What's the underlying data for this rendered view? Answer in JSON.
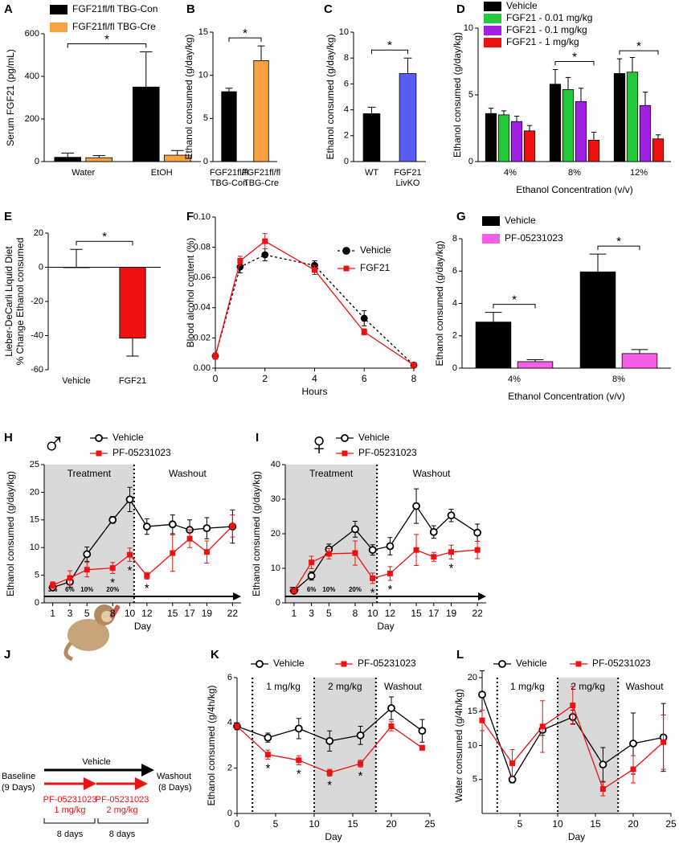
{
  "chart_data": [
    {
      "panel": "A",
      "type": "bar",
      "ylabel": "Serum FGF21 (pg/mL)",
      "categories": [
        "Water",
        "EtOH"
      ],
      "series": [
        {
          "name": "FGF21fl/fl TBG-Con",
          "color": "#000000",
          "values": [
            20,
            350
          ],
          "errors": [
            20,
            165
          ]
        },
        {
          "name": "FGF21fl/fl TBG-Cre",
          "color": "#f9a040",
          "values": [
            18,
            30
          ],
          "errors": [
            10,
            22
          ]
        }
      ],
      "ylim": [
        0,
        600
      ],
      "yticks": [
        0,
        200,
        400,
        600
      ],
      "significance": [
        {
          "label": "*",
          "a": [
            0,
            0
          ],
          "b": [
            0,
            1
          ]
        }
      ]
    },
    {
      "panel": "B",
      "type": "bar",
      "ylabel": "Ethanol consumed (g/day/kg)",
      "categories": [
        [
          "FGF21fl/fl",
          "TBG-Con"
        ],
        [
          "FGF21fl/fl",
          "TBG-Cre"
        ]
      ],
      "values": [
        8.1,
        11.7
      ],
      "errors": [
        0.4,
        1.7
      ],
      "colors": [
        "#000000",
        "#f9a040"
      ],
      "ylim": [
        0,
        15
      ],
      "yticks": [
        0,
        5,
        10,
        15
      ],
      "significance": [
        {
          "label": "*",
          "a": [
            0,
            0
          ],
          "b": [
            0,
            1
          ]
        }
      ]
    },
    {
      "panel": "C",
      "type": "bar",
      "ylabel": "Ethanol consumed (g/day/kg)",
      "categories": [
        "WT",
        [
          "FGF21",
          "LivKO"
        ]
      ],
      "values": [
        3.7,
        6.8
      ],
      "errors": [
        0.5,
        1.2
      ],
      "colors": [
        "#000000",
        "#5b5ef4"
      ],
      "ylim": [
        0,
        10
      ],
      "yticks": [
        0,
        2,
        4,
        6,
        8,
        10
      ],
      "significance": [
        {
          "label": "*",
          "a": [
            0,
            0
          ],
          "b": [
            0,
            1
          ]
        }
      ]
    },
    {
      "panel": "D",
      "type": "bar",
      "ylabel": "Ethanol consumed (g/day/kg)",
      "xlabel": "Ethanol Concentration (v/v)",
      "categories": [
        "4%",
        "8%",
        "12%"
      ],
      "series": [
        {
          "name": "Vehicle",
          "color": "#000000",
          "values": [
            3.6,
            5.8,
            6.6
          ],
          "errors": [
            0.4,
            1.1,
            1.1
          ]
        },
        {
          "name": "FGF21 - 0.01 mg/kg",
          "color": "#22c93a",
          "values": [
            3.5,
            5.4,
            6.7
          ],
          "errors": [
            0.3,
            0.9,
            1.1
          ]
        },
        {
          "name": "FGF21 - 0.1 mg/kg",
          "color": "#a21fe8",
          "values": [
            3.0,
            4.5,
            4.2
          ],
          "errors": [
            0.4,
            1.0,
            1.0
          ]
        },
        {
          "name": "FGF21 - 1 mg/kg",
          "color": "#ee1111",
          "values": [
            2.3,
            1.6,
            1.7
          ],
          "errors": [
            0.4,
            0.6,
            0.3
          ]
        }
      ],
      "ylim": [
        0,
        10
      ],
      "yticks": [
        0,
        5,
        10
      ],
      "significance": [
        {
          "label": "*",
          "a": [
            0,
            1
          ],
          "b": [
            3,
            1
          ]
        },
        {
          "label": "*",
          "a": [
            0,
            2
          ],
          "b": [
            3,
            2
          ]
        }
      ]
    },
    {
      "panel": "E",
      "type": "bar",
      "ylabel": [
        "Lieber-DeCarli Liquid Diet",
        "% Change Ethanol consumed"
      ],
      "categories": [
        "Vehicle",
        "FGF21"
      ],
      "values": [
        0,
        -41.5
      ],
      "errors": [
        10.5,
        10.5
      ],
      "colors": [
        "#ffffff",
        "#ee1111"
      ],
      "ylim": [
        -60,
        20
      ],
      "yticks": [
        -60,
        -40,
        -20,
        0,
        20
      ],
      "significance": [
        {
          "label": "*",
          "a": [
            0,
            0
          ],
          "b": [
            0,
            1
          ]
        }
      ]
    },
    {
      "panel": "F",
      "type": "line",
      "ylabel": "Blood alcohol content (%)",
      "xlabel": "Hours",
      "x": [
        0,
        1,
        2,
        4,
        6,
        8
      ],
      "xlim": [
        0,
        8
      ],
      "xticks": [
        0,
        2,
        4,
        6,
        8
      ],
      "series": [
        {
          "name": "Vehicle",
          "color": "#000000",
          "marker": "circle",
          "line_style": "dashed",
          "values": [
            0.008,
            0.067,
            0.075,
            0.068,
            0.033,
            0.002
          ],
          "errors": [
            0.002,
            0.004,
            0.004,
            0.003,
            0.005,
            0.001
          ]
        },
        {
          "name": "FGF21",
          "color": "#ee1111",
          "marker": "square",
          "line_style": "solid",
          "values": [
            0.008,
            0.071,
            0.084,
            0.065,
            0.024,
            0.002
          ],
          "errors": [
            0.002,
            0.003,
            0.005,
            0.003,
            0.002,
            0.001
          ]
        }
      ],
      "ylim": [
        0,
        0.1
      ],
      "yticks": [
        {
          "value": 0,
          "label": "0.00"
        },
        {
          "value": 0.02,
          "label": "0.02"
        },
        {
          "value": 0.04,
          "label": "0.04"
        },
        {
          "value": 0.06,
          "label": "0.06"
        },
        {
          "value": 0.08,
          "label": "0.08"
        },
        {
          "value": 0.1,
          "label": "0.10"
        }
      ]
    },
    {
      "panel": "G",
      "type": "bar",
      "ylabel": "Ethanol consumed (g/day/kg)",
      "xlabel": "Ethanol Concentration (v/v)",
      "categories": [
        "4%",
        "8%"
      ],
      "series": [
        {
          "name": "Vehicle",
          "color": "#000000",
          "values": [
            2.85,
            5.95
          ],
          "errors": [
            0.6,
            1.1
          ]
        },
        {
          "name": "PF-05231023",
          "color": "#f75ee8",
          "values": [
            0.4,
            0.9
          ],
          "errors": [
            0.12,
            0.25
          ]
        }
      ],
      "ylim": [
        0,
        8
      ],
      "yticks": [
        0,
        2,
        4,
        6,
        8
      ],
      "significance": [
        {
          "label": "*",
          "a": [
            0,
            0
          ],
          "b": [
            1,
            0
          ]
        },
        {
          "label": "*",
          "a": [
            0,
            1
          ],
          "b": [
            1,
            1
          ]
        }
      ]
    },
    {
      "panel": "H",
      "type": "line",
      "symbol": "♂",
      "ylabel": "Ethanol consumed (g/day/kg)",
      "xlabel": "Day",
      "x": [
        1,
        3,
        5,
        8,
        10,
        12,
        15,
        17,
        19,
        22
      ],
      "xlim": [
        0,
        23
      ],
      "xticks": [
        1,
        3,
        5,
        8,
        10,
        12,
        15,
        17,
        19,
        22
      ],
      "series": [
        {
          "name": "Vehicle",
          "color": "#000000",
          "marker": "open-circle",
          "line_style": "solid",
          "values": [
            2.8,
            3.8,
            8.8,
            15,
            18.7,
            13.8,
            14.2,
            13.2,
            13.5,
            13.8
          ],
          "errors": [
            0.3,
            1,
            1.3,
            0.6,
            2.2,
            1.4,
            1.7,
            1.8,
            1.9,
            3
          ]
        },
        {
          "name": "PF-05231023",
          "color": "#ee1111",
          "marker": "square",
          "line_style": "solid",
          "values": [
            3.2,
            4.5,
            6,
            6.3,
            8.7,
            4.9,
            9,
            11.6,
            9.2,
            13.9
          ],
          "errors": [
            0.6,
            1.3,
            1.3,
            1,
            1.2,
            0.6,
            3.3,
            1.6,
            2,
            2
          ]
        }
      ],
      "ylim": [
        0,
        25
      ],
      "yticks": [
        0,
        5,
        10,
        15,
        20,
        25
      ],
      "regions": [
        {
          "label": "Treatment",
          "x": [
            0,
            10.5
          ],
          "shaded": true
        },
        {
          "label": "Washout",
          "x": [
            10.5,
            23
          ],
          "shaded": false
        }
      ],
      "vlines": [
        10.5
      ],
      "arrow": true,
      "stage_labels": [
        {
          "x": 1,
          "label": "3%"
        },
        {
          "x": 3,
          "label": "6%"
        },
        {
          "x": 5,
          "label": "10%"
        },
        {
          "x": 8,
          "label": "20%"
        }
      ],
      "significance": [
        {
          "label": "*",
          "at": [
            1,
            3
          ]
        },
        {
          "label": "*",
          "at": [
            1,
            4
          ]
        },
        {
          "label": "*",
          "at": [
            1,
            5
          ]
        }
      ]
    },
    {
      "panel": "I",
      "type": "line",
      "symbol": "♀",
      "ylabel": "Ethanol consumed (g/day/kg)",
      "xlabel": "Day",
      "x": [
        1,
        3,
        5,
        8,
        10,
        12,
        15,
        17,
        19,
        22
      ],
      "xlim": [
        0,
        23
      ],
      "xticks": [
        1,
        3,
        5,
        8,
        10,
        12,
        15,
        17,
        19,
        22
      ],
      "series": [
        {
          "name": "Vehicle",
          "color": "#000000",
          "marker": "open-circle",
          "line_style": "solid",
          "values": [
            3.5,
            7.8,
            15.5,
            21.3,
            15.3,
            16.4,
            28,
            20.5,
            25.3,
            20.3
          ],
          "errors": [
            0.8,
            1.2,
            1.5,
            2.3,
            1.5,
            2.5,
            5,
            1.8,
            1.8,
            2.5
          ]
        },
        {
          "name": "PF-05231023",
          "color": "#ee1111",
          "marker": "square",
          "line_style": "solid",
          "values": [
            3.5,
            11.7,
            14.2,
            14.4,
            7.1,
            8.5,
            15.3,
            13.3,
            14.7,
            15.3
          ],
          "errors": [
            0.5,
            1.8,
            1.5,
            3.5,
            1.5,
            2,
            4.5,
            1.3,
            2,
            2.5
          ]
        }
      ],
      "ylim": [
        0,
        40
      ],
      "yticks": [
        0,
        10,
        20,
        30,
        40
      ],
      "regions": [
        {
          "label": "Treatment",
          "x": [
            0,
            10.5
          ],
          "shaded": true
        },
        {
          "label": "Washout",
          "x": [
            10.5,
            23
          ],
          "shaded": false
        }
      ],
      "vlines": [
        10.5
      ],
      "arrow": true,
      "stage_labels": [
        {
          "x": 1,
          "label": "3%"
        },
        {
          "x": 3,
          "label": "6%"
        },
        {
          "x": 5,
          "label": "10%"
        },
        {
          "x": 8,
          "label": "20%"
        }
      ],
      "significance": [
        {
          "label": "*",
          "at": [
            1,
            4
          ]
        },
        {
          "label": "*",
          "at": [
            1,
            5
          ]
        },
        {
          "label": "*",
          "at": [
            1,
            8
          ]
        }
      ]
    },
    {
      "panel": "K",
      "type": "line",
      "ylabel": "Ethanol consumed (g/4h/kg)",
      "xlabel": "Day",
      "x": [
        0,
        4,
        8,
        12,
        16,
        20,
        24
      ],
      "xlim": [
        0,
        25
      ],
      "xticks": [
        0,
        5,
        10,
        15,
        20,
        25
      ],
      "series": [
        {
          "name": "Vehicle",
          "color": "#000000",
          "marker": "open-circle",
          "line_style": "solid",
          "values": [
            3.85,
            3.35,
            3.75,
            3.2,
            3.45,
            4.65,
            3.65
          ],
          "errors": [
            0.15,
            0.2,
            0.45,
            0.45,
            0.4,
            0.5,
            0.5
          ]
        },
        {
          "name": "PF-05231023",
          "color": "#ee1111",
          "marker": "square",
          "line_style": "solid",
          "values": [
            3.85,
            2.6,
            2.35,
            1.8,
            2.2,
            3.85,
            2.9
          ],
          "errors": [
            0.1,
            0.2,
            0.2,
            0.15,
            0.15,
            0.2,
            0.1
          ]
        }
      ],
      "ylim": [
        0,
        6
      ],
      "yticks": [
        0,
        2,
        4,
        6
      ],
      "regions": [
        {
          "label": "1 mg/kg",
          "x": [
            2,
            10
          ],
          "shaded": false
        },
        {
          "label": "2 mg/kg",
          "x": [
            10,
            18
          ],
          "shaded": true
        },
        {
          "label": "Washout",
          "x": [
            18,
            25
          ],
          "shaded": false
        }
      ],
      "vlines": [
        2,
        10,
        18
      ],
      "significance": [
        {
          "label": "*",
          "at": [
            1,
            1
          ]
        },
        {
          "label": "*",
          "at": [
            1,
            2
          ]
        },
        {
          "label": "*",
          "at": [
            1,
            3
          ]
        },
        {
          "label": "*",
          "at": [
            1,
            4
          ]
        }
      ]
    },
    {
      "panel": "L",
      "type": "line",
      "ylabel": "Water consumed (g/4h/kg)",
      "xlabel": "Day",
      "x": [
        0,
        4,
        8,
        12,
        16,
        20,
        24
      ],
      "xlim": [
        0,
        25
      ],
      "xticks": [
        5,
        10,
        15,
        20,
        25
      ],
      "series": [
        {
          "name": "Vehicle",
          "color": "#000000",
          "marker": "open-circle",
          "line_style": "solid",
          "values": [
            17.5,
            5,
            12.3,
            14.2,
            7.2,
            10.3,
            11.2
          ],
          "errors": [
            3.5,
            0.5,
            0.8,
            1,
            2.5,
            4.5,
            5
          ]
        },
        {
          "name": "PF-05231023",
          "color": "#ee1111",
          "marker": "square",
          "line_style": "solid",
          "values": [
            13.7,
            7.4,
            12.8,
            15.9,
            3.6,
            6.5,
            10.5
          ],
          "errors": [
            1.5,
            2,
            3.8,
            2.8,
            1,
            2,
            4
          ]
        }
      ],
      "ylim": [
        0,
        20
      ],
      "yticks": [
        5,
        10,
        15,
        20
      ],
      "regions": [
        {
          "label": "1 mg/kg",
          "x": [
            2,
            10
          ],
          "shaded": false
        },
        {
          "label": "2 mg/kg",
          "x": [
            10,
            18
          ],
          "shaded": true
        },
        {
          "label": "Washout",
          "x": [
            18,
            25
          ],
          "shaded": false
        }
      ],
      "vlines": [
        2,
        10,
        18
      ]
    }
  ],
  "diagram": {
    "panel": "J",
    "vehicle": "Vehicle",
    "baseline": "Baseline",
    "baseline_days": "(9 Days)",
    "washout": "Washout",
    "washout_days": "(8 Days)",
    "dose1_drug": "PF-05231023",
    "dose1": "1 mg/kg",
    "dose2_drug": "PF-05231023",
    "dose2": "2 mg/kg",
    "period1": "8 days",
    "period2": "8 days"
  }
}
